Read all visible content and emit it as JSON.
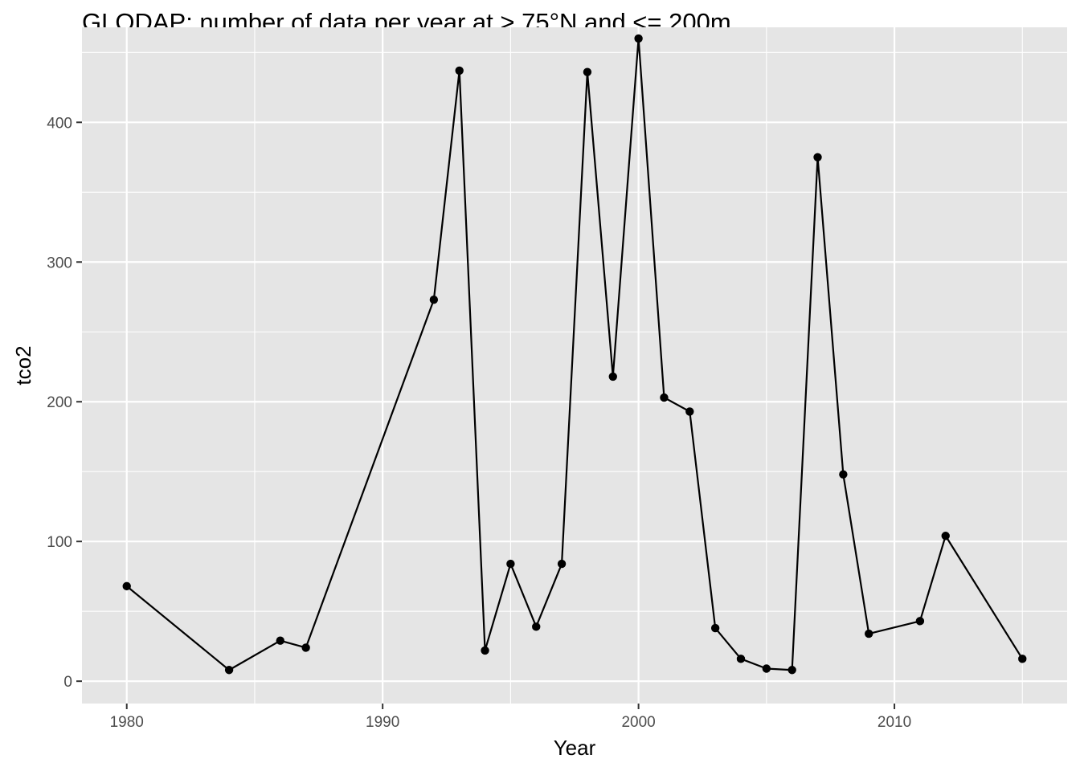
{
  "chart_data": {
    "type": "line",
    "title": "GLODAP: number of data per year at > 75°N and <= 200m",
    "xlabel": "Year",
    "ylabel": "tco2",
    "xlim": [
      1978.25,
      2016.75
    ],
    "ylim": [
      -16,
      468
    ],
    "x_ticks": [
      1980,
      1990,
      2000,
      2010
    ],
    "x_tick_labels": [
      "1980",
      "1990",
      "2000",
      "2010"
    ],
    "x_minor_ticks": [
      1985,
      1995,
      2005,
      2015
    ],
    "y_ticks": [
      0,
      100,
      200,
      300,
      400
    ],
    "y_tick_labels": [
      "0",
      "100",
      "200",
      "300",
      "400"
    ],
    "y_minor_ticks": [
      50,
      150,
      250,
      350,
      450
    ],
    "grid": true,
    "legend": "none",
    "colors": {
      "panel_background": "#e5e5e5",
      "grid": "#ffffff",
      "line": "#000000",
      "point": "#000000"
    },
    "series": [
      {
        "x": [
          1980,
          1984,
          1986,
          1987,
          1992,
          1993,
          1994,
          1995,
          1996,
          1997,
          1998,
          1999,
          2000,
          2001,
          2002,
          2003,
          2004,
          2005,
          2006,
          2007,
          2008,
          2009,
          2011,
          2012,
          2015
        ],
        "y": [
          68,
          8,
          29,
          24,
          273,
          437,
          22,
          84,
          39,
          84,
          436,
          218,
          460,
          203,
          193,
          38,
          16,
          9,
          8,
          375,
          148,
          34,
          43,
          104,
          16
        ]
      }
    ]
  }
}
